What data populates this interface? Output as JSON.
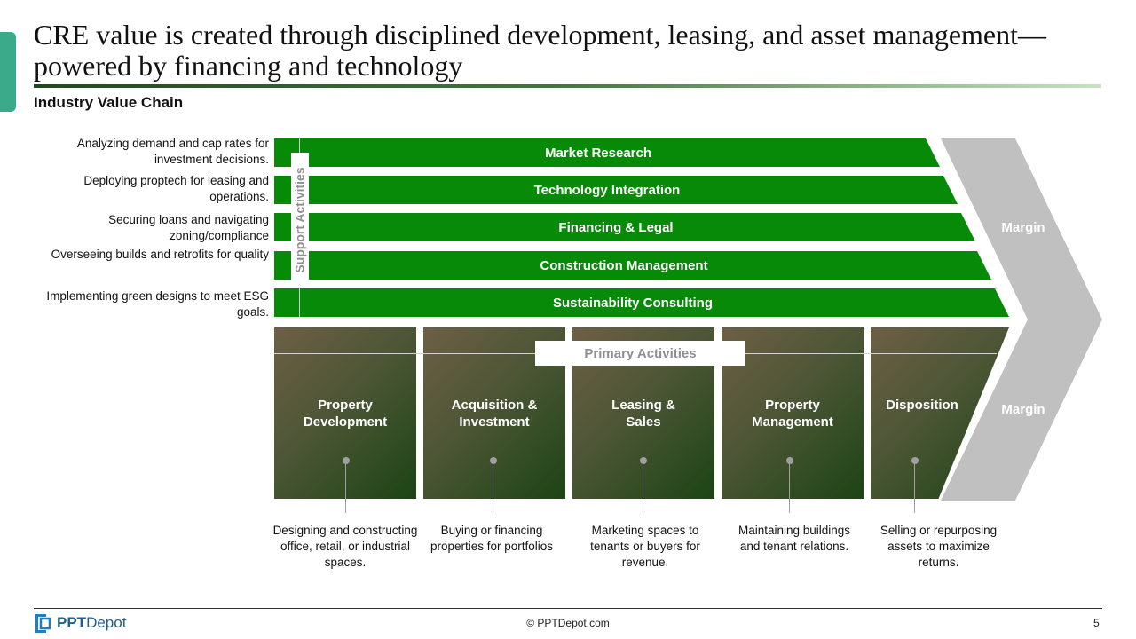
{
  "slide": {
    "title": "CRE value is created through disciplined development, leasing, and asset management—powered by financing and technology",
    "subtitle": "Industry Value Chain"
  },
  "support": {
    "label": "Support Activities",
    "items": [
      {
        "bar": "Market Research",
        "desc": "Analyzing demand and cap rates for investment decisions."
      },
      {
        "bar": "Technology Integration",
        "desc": "Deploying proptech for leasing and operations."
      },
      {
        "bar": "Financing & Legal",
        "desc": "Securing loans and navigating zoning/compliance"
      },
      {
        "bar": "Construction Management",
        "desc": "Overseeing builds and retrofits for quality"
      },
      {
        "bar": "Sustainability Consulting",
        "desc": "Implementing green designs to meet ESG goals."
      }
    ]
  },
  "primary": {
    "label": "Primary Activities",
    "items": [
      {
        "title": "Property Development",
        "desc": "Designing and constructing office, retail, or industrial spaces."
      },
      {
        "title": "Acquisition & Investment",
        "desc": "Buying or financing properties for portfolios"
      },
      {
        "title": "Leasing & Sales",
        "desc": "Marketing spaces to tenants or buyers for revenue."
      },
      {
        "title": "Property Management",
        "desc": "Maintaining buildings and tenant relations."
      },
      {
        "title": "Disposition",
        "desc": "Selling or repurposing assets to maximize returns."
      }
    ]
  },
  "margin": {
    "top_label": "Margin",
    "bottom_label": "Margin"
  },
  "colors": {
    "support_bar": "#078a07",
    "margin": "#c0c0c0",
    "accent": "#3aaa8a"
  },
  "footer": {
    "logo_bold": "PPT",
    "logo_rest": "Depot",
    "copyright": "© PPTDepot.com",
    "page": "5"
  }
}
